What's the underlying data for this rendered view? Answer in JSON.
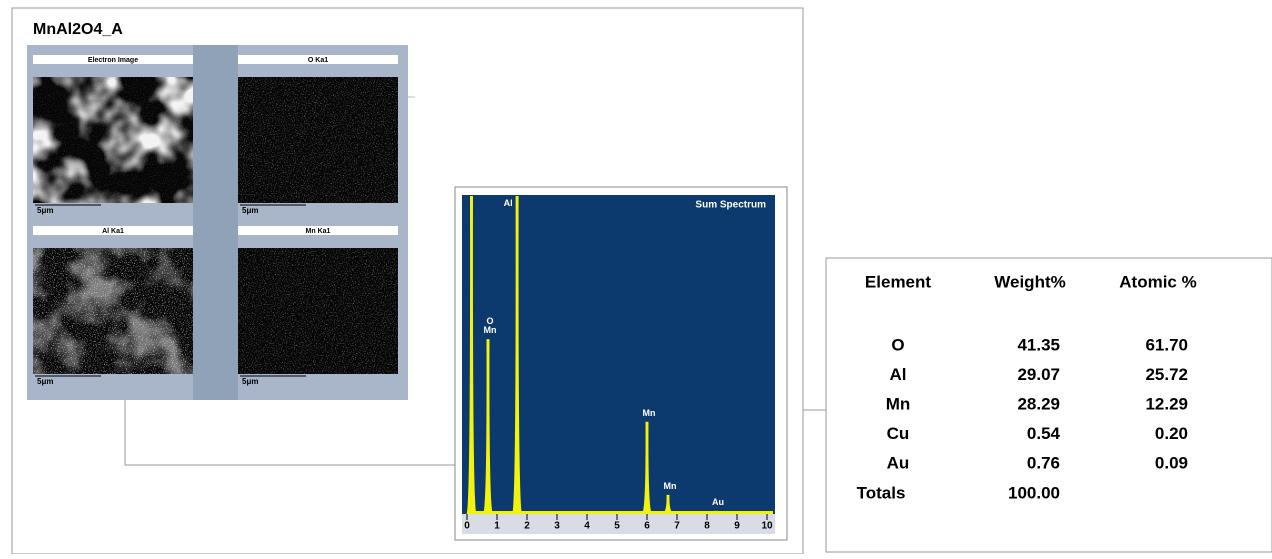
{
  "title": "MnAl2O4_A",
  "maps": [
    {
      "label": "Electron Image",
      "scale": "5μm"
    },
    {
      "label": "O Ka1",
      "scale": "5μm"
    },
    {
      "label": "Al Ka1",
      "scale": "5μm"
    },
    {
      "label": "Mn Ka1",
      "scale": "5μm"
    }
  ],
  "spectrum": {
    "title": "Sum Spectrum",
    "xlim": [
      0,
      10
    ],
    "xticks": [
      0,
      1,
      2,
      3,
      4,
      5,
      6,
      7,
      8,
      9,
      10
    ],
    "color": "#f2f20a",
    "peaks": [
      {
        "x": 0.15,
        "height": 1.0
      },
      {
        "label": "O\nMn",
        "x": 0.7,
        "height": 0.55
      },
      {
        "label": "Al",
        "x": 1.67,
        "height": 1.0
      },
      {
        "label": "Mn",
        "x": 6.0,
        "height": 0.29
      },
      {
        "label": "Mn",
        "x": 6.7,
        "height": 0.06
      },
      {
        "label": "Au",
        "x": 8.3,
        "height": 0.01
      }
    ]
  },
  "table": {
    "header": [
      "Element",
      "Weight%",
      "Atomic %"
    ],
    "rows": [
      [
        "O",
        "41.35",
        "61.70"
      ],
      [
        "Al",
        "29.07",
        "25.72"
      ],
      [
        "Mn",
        "28.29",
        "12.29"
      ],
      [
        "Cu",
        "0.54",
        "0.20"
      ],
      [
        "Au",
        "0.76",
        "0.09"
      ]
    ],
    "totals": [
      "Totals",
      "100.00"
    ]
  }
}
